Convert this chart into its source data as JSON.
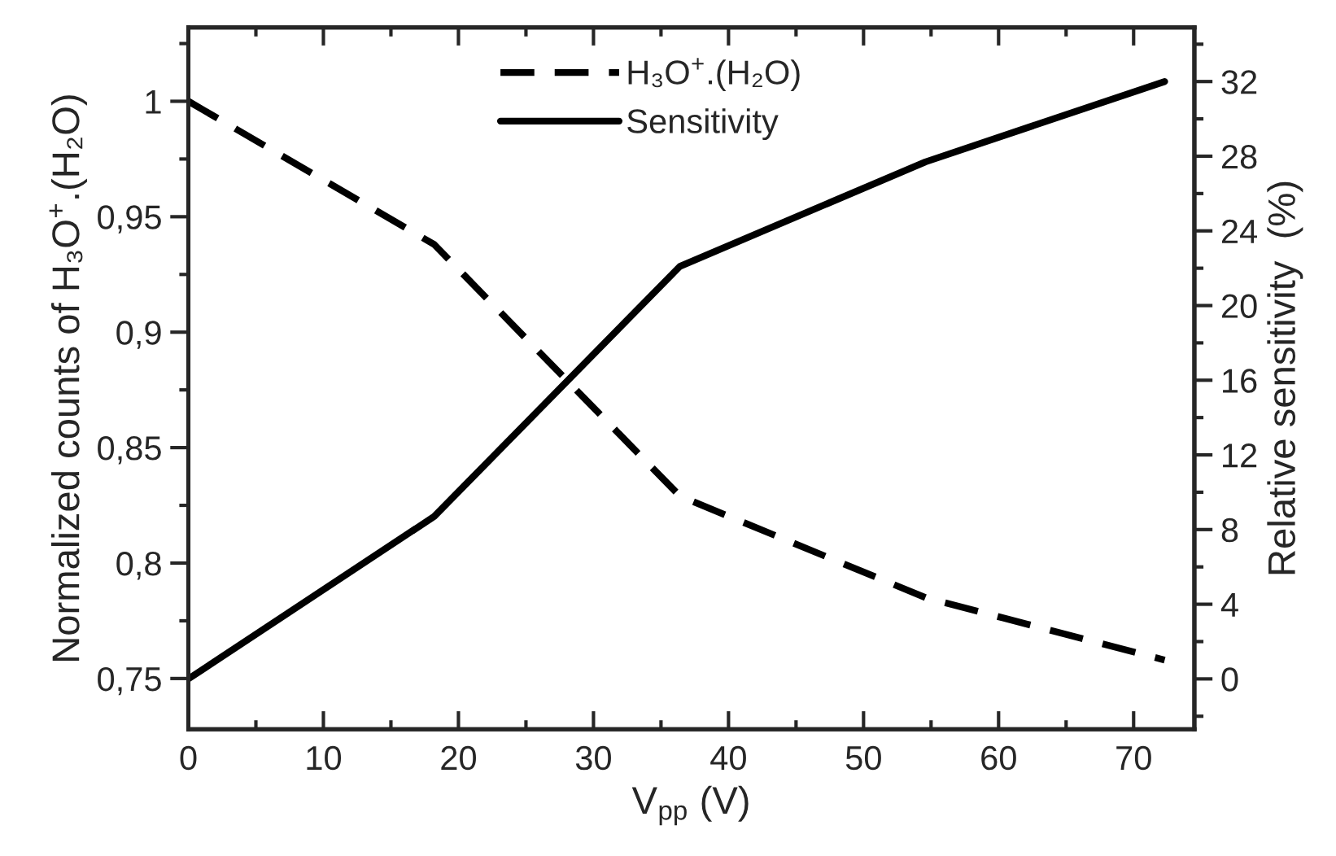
{
  "chart_data": {
    "type": "line",
    "xlabel": "V$_{pp}$ (V)",
    "ylabel": "Normalized counts of H₃O$^{+}$.(H₂O)",
    "y2label": "Relative sensitivity  (%)",
    "x": [
      0,
      18.2,
      36.4,
      54.6,
      72.3
    ],
    "series": [
      {
        "name": "H₃O$^{+}$.(H₂O)",
        "color": "#000000",
        "line_style": "dashed",
        "values": [
          1.0,
          0.938,
          0.829,
          0.785,
          0.758
        ]
      },
      {
        "name": "Sensitivity",
        "color": "#000000",
        "line_style": "solid",
        "axis": "y2",
        "values": [
          0,
          8.7,
          22.1,
          27.7,
          32
        ]
      }
    ],
    "xlim": [
      0,
      74.5
    ],
    "xticks": [
      0,
      10,
      20,
      30,
      40,
      50,
      60,
      70
    ],
    "ylim": [
      0.728,
      1.032
    ],
    "yticks": [
      {
        "value": 0.75,
        "label": "0,75"
      },
      {
        "value": 0.8,
        "label": "0,8"
      },
      {
        "value": 0.85,
        "label": "0,85"
      },
      {
        "value": 0.9,
        "label": "0,9"
      },
      {
        "value": 0.95,
        "label": "0,95"
      },
      1
    ],
    "y2lim": [
      -2.7,
      34.9
    ],
    "y2ticks": [
      0,
      4,
      8,
      12,
      16,
      20,
      24,
      28,
      32
    ],
    "legend": "top",
    "grid": false,
    "marker": "none"
  }
}
